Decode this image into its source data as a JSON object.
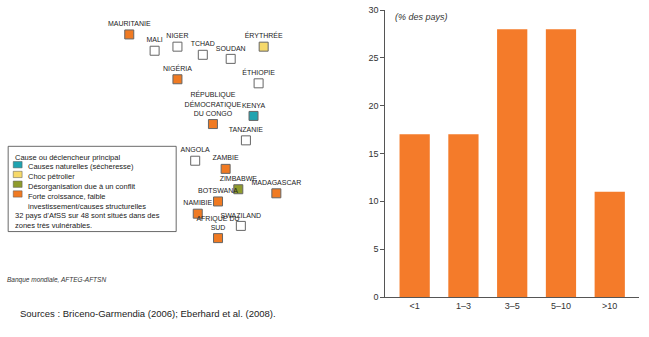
{
  "chart_data": [
    {
      "type": "map",
      "legend_title": "Cause ou déclencheur principal",
      "legend_items": [
        {
          "label": "Causes naturelles (sécheresse)",
          "color": "#1fa3b0"
        },
        {
          "label": "Choc pétrolier",
          "color": "#f6d96a"
        },
        {
          "label": "Désorganisation due à un conflit",
          "color": "#8f9b2c"
        },
        {
          "label": "Forte croissance, faible investissement/causes structurelles",
          "color": "#f07a22"
        }
      ],
      "note": "32 pays d'AfSS sur 48 sont situés dans des zones très vulnérables.",
      "credit": "Banque mondiale, AFTEG-AFTSN",
      "source": "Sources : Briceno-Garmendia (2006); Eberhard et al. (2008).",
      "xlim": [
        -60,
        55
      ],
      "ylim": [
        -36,
        26
      ],
      "tick_labels": false,
      "countries": [
        {
          "name": "MAURITANIE",
          "lon": -11,
          "lat": 20,
          "cause": 3
        },
        {
          "name": "MALI",
          "lon": -1,
          "lat": 16,
          "cause": null
        },
        {
          "name": "NIGER",
          "lon": 8,
          "lat": 17,
          "cause": null
        },
        {
          "name": "TCHAD",
          "lon": 18,
          "lat": 15,
          "cause": null
        },
        {
          "name": "SOUDAN",
          "lon": 29,
          "lat": 14,
          "cause": null
        },
        {
          "name": "ÉRYTHRÉE",
          "lon": 42,
          "lat": 17,
          "cause": 1
        },
        {
          "name": "ÉTHIOPIE",
          "lon": 40,
          "lat": 8,
          "cause": null
        },
        {
          "name": "NIGÉRIA",
          "lon": 8,
          "lat": 9,
          "cause": 3
        },
        {
          "name": "RÉPUBLIQUE DÉMOCRATIQUE DU CONGO",
          "lon": 22,
          "lat": -2,
          "cause": 3
        },
        {
          "name": "KENYA",
          "lon": 38,
          "lat": 0,
          "cause": 0
        },
        {
          "name": "TANZANIE",
          "lon": 35,
          "lat": -6,
          "cause": null
        },
        {
          "name": "ANGOLA",
          "lon": 15,
          "lat": -11,
          "cause": null
        },
        {
          "name": "ZAMBIE",
          "lon": 27,
          "lat": -13,
          "cause": 3
        },
        {
          "name": "ZIMBABWE",
          "lon": 32,
          "lat": -18,
          "cause": 2
        },
        {
          "name": "NAMIBIE",
          "lon": 16,
          "lat": -24,
          "cause": 3
        },
        {
          "name": "BOTSWANA",
          "lon": 24,
          "lat": -21,
          "cause": 3
        },
        {
          "name": "SWAZILAND",
          "lon": 33,
          "lat": -27,
          "cause": null
        },
        {
          "name": "AFRIQUE DU SUD",
          "lon": 24,
          "lat": -30,
          "cause": 3
        },
        {
          "name": "MADAGASCAR",
          "lon": 47,
          "lat": -19,
          "cause": 3
        }
      ]
    },
    {
      "type": "bar",
      "annotation": "(% des pays)",
      "categories": [
        "<1",
        "1–3",
        "3–5",
        "5–10",
        ">10"
      ],
      "values": [
        17,
        17,
        28,
        28,
        11
      ],
      "color": "#f47b2a",
      "ylim": [
        0,
        30
      ],
      "yticks": [
        0,
        5,
        10,
        15,
        20,
        25,
        30
      ],
      "grid": false
    }
  ]
}
